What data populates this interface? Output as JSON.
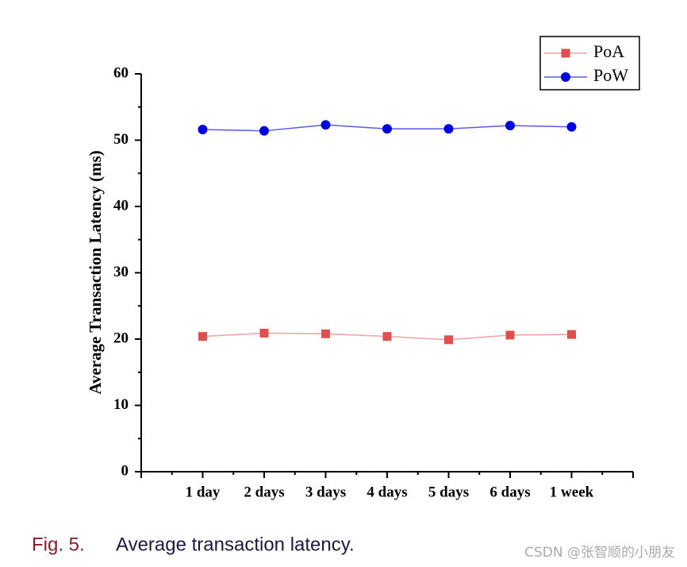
{
  "chart_data": {
    "type": "line",
    "y_label": "Average  Transaction Latency (ms)",
    "categories": [
      "1 day",
      "2 days",
      "3 days",
      "4 days",
      "5 days",
      "6 days",
      "1 week"
    ],
    "series": [
      {
        "name": "PoA",
        "color": "#e05050",
        "line_color": "#f0a0a0",
        "marker": "square",
        "values": [
          20.4,
          20.9,
          20.8,
          20.4,
          19.9,
          20.6,
          20.7
        ]
      },
      {
        "name": "PoW",
        "color": "#0000e0",
        "line_color": "#5a5aee",
        "marker": "circle",
        "values": [
          51.6,
          51.4,
          52.3,
          51.7,
          51.7,
          52.2,
          52.0
        ]
      }
    ],
    "ylim": [
      0,
      60
    ],
    "yticks": [
      0,
      10,
      20,
      30,
      40,
      50,
      60
    ],
    "legend": "upper right"
  },
  "figure_caption": {
    "number": "Fig. 5.",
    "text": "Average transaction latency."
  },
  "watermark": "CSDN @张智顺的小朋友"
}
